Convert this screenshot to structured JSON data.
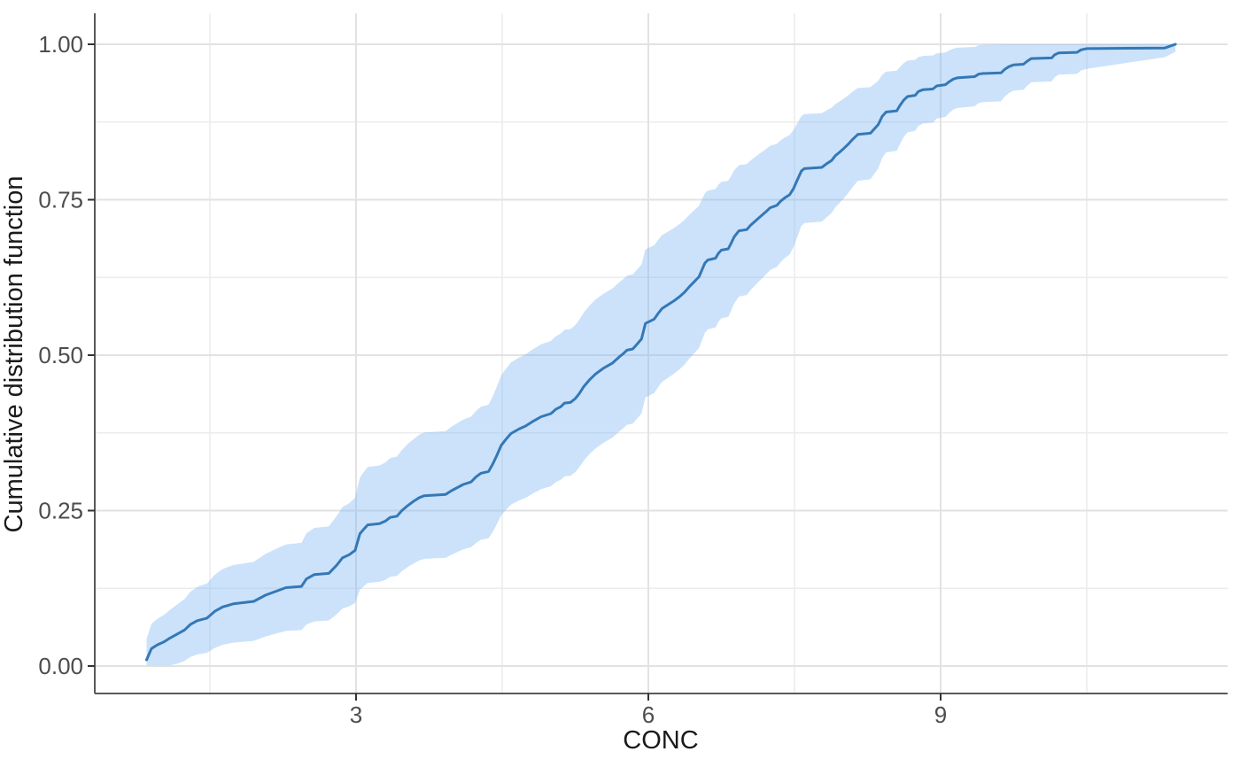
{
  "chart_data": {
    "type": "line",
    "subtype": "ecdf_with_confidence_band",
    "title": "",
    "xlabel": "CONC",
    "ylabel": "Cumulative distribution function",
    "legend": "none",
    "grid": "major+minor",
    "x_ticks": [
      3,
      6,
      9
    ],
    "x_tick_labels": [
      "3",
      "6",
      "9"
    ],
    "x_minor_ticks": [
      1.5,
      4.5,
      7.5,
      10.5
    ],
    "y_ticks": [
      0,
      0.25,
      0.5,
      0.75,
      1
    ],
    "y_tick_labels": [
      "0.00",
      "0.25",
      "0.50",
      "0.75",
      "1.00"
    ],
    "y_minor_ticks": [
      0.125,
      0.375,
      0.625,
      0.875
    ],
    "xlim": [
      0.32,
      11.95
    ],
    "ylim": [
      -0.043,
      1.051
    ],
    "x_data_range": [
      0.85,
      11.41
    ],
    "colors": {
      "line": "#3478b6",
      "band_fill": "rgba(130,185,242,0.42)",
      "grid_major": "#e2e2e2",
      "grid_minor": "#ececec",
      "axis_line": "#595959",
      "tick_mark": "#333333",
      "tick_label": "#4d4d4d",
      "axis_title": "#1a1a1a",
      "background": "#ffffff"
    },
    "band_model": {
      "note": "pointwise confidence band around ECDF, estimated from pixels",
      "hi_base": 0.03,
      "hi_curve": 0.36,
      "lo_base": 0.03,
      "lo_curve": 0.36,
      "lo_floor": 0.001,
      "hi_cap": 1.0,
      "tail_taper": {
        "start_x": 10.3,
        "start_gap": 0.04,
        "end_x": 11.41,
        "end_gap": 0.012
      }
    },
    "points": [
      [
        0.85,
        0.01
      ],
      [
        0.9,
        0.028
      ],
      [
        0.96,
        0.034
      ],
      [
        1.03,
        0.039
      ],
      [
        1.09,
        0.045
      ],
      [
        1.16,
        0.051
      ],
      [
        1.24,
        0.058
      ],
      [
        1.3,
        0.067
      ],
      [
        1.37,
        0.073
      ],
      [
        1.47,
        0.077
      ],
      [
        1.55,
        0.088
      ],
      [
        1.63,
        0.095
      ],
      [
        1.74,
        0.1
      ],
      [
        1.95,
        0.104
      ],
      [
        2.07,
        0.114
      ],
      [
        2.19,
        0.121
      ],
      [
        2.28,
        0.126
      ],
      [
        2.44,
        0.128
      ],
      [
        2.49,
        0.14
      ],
      [
        2.57,
        0.147
      ],
      [
        2.72,
        0.149
      ],
      [
        2.8,
        0.162
      ],
      [
        2.86,
        0.174
      ],
      [
        2.93,
        0.179
      ],
      [
        2.99,
        0.186
      ],
      [
        3.04,
        0.213
      ],
      [
        3.09,
        0.222
      ],
      [
        3.12,
        0.227
      ],
      [
        3.24,
        0.229
      ],
      [
        3.3,
        0.233
      ],
      [
        3.35,
        0.239
      ],
      [
        3.42,
        0.241
      ],
      [
        3.47,
        0.25
      ],
      [
        3.53,
        0.258
      ],
      [
        3.59,
        0.265
      ],
      [
        3.65,
        0.271
      ],
      [
        3.7,
        0.274
      ],
      [
        3.92,
        0.276
      ],
      [
        3.98,
        0.282
      ],
      [
        4.04,
        0.287
      ],
      [
        4.1,
        0.292
      ],
      [
        4.18,
        0.296
      ],
      [
        4.23,
        0.304
      ],
      [
        4.28,
        0.31
      ],
      [
        4.36,
        0.313
      ],
      [
        4.4,
        0.324
      ],
      [
        4.44,
        0.337
      ],
      [
        4.49,
        0.355
      ],
      [
        4.54,
        0.365
      ],
      [
        4.59,
        0.374
      ],
      [
        4.67,
        0.381
      ],
      [
        4.74,
        0.386
      ],
      [
        4.81,
        0.393
      ],
      [
        4.9,
        0.401
      ],
      [
        5.0,
        0.406
      ],
      [
        5.05,
        0.413
      ],
      [
        5.1,
        0.417
      ],
      [
        5.14,
        0.423
      ],
      [
        5.2,
        0.424
      ],
      [
        5.25,
        0.43
      ],
      [
        5.29,
        0.438
      ],
      [
        5.34,
        0.45
      ],
      [
        5.4,
        0.461
      ],
      [
        5.46,
        0.47
      ],
      [
        5.54,
        0.479
      ],
      [
        5.63,
        0.487
      ],
      [
        5.7,
        0.497
      ],
      [
        5.74,
        0.502
      ],
      [
        5.78,
        0.508
      ],
      [
        5.84,
        0.51
      ],
      [
        5.88,
        0.517
      ],
      [
        5.93,
        0.526
      ],
      [
        5.97,
        0.551
      ],
      [
        6.06,
        0.558
      ],
      [
        6.1,
        0.567
      ],
      [
        6.14,
        0.575
      ],
      [
        6.2,
        0.581
      ],
      [
        6.26,
        0.587
      ],
      [
        6.32,
        0.594
      ],
      [
        6.37,
        0.601
      ],
      [
        6.42,
        0.61
      ],
      [
        6.47,
        0.618
      ],
      [
        6.52,
        0.626
      ],
      [
        6.55,
        0.637
      ],
      [
        6.58,
        0.648
      ],
      [
        6.61,
        0.653
      ],
      [
        6.69,
        0.656
      ],
      [
        6.72,
        0.664
      ],
      [
        6.75,
        0.669
      ],
      [
        6.82,
        0.671
      ],
      [
        6.85,
        0.68
      ],
      [
        6.88,
        0.69
      ],
      [
        6.93,
        0.7
      ],
      [
        7.01,
        0.702
      ],
      [
        7.05,
        0.709
      ],
      [
        7.1,
        0.716
      ],
      [
        7.15,
        0.723
      ],
      [
        7.21,
        0.731
      ],
      [
        7.25,
        0.737
      ],
      [
        7.32,
        0.741
      ],
      [
        7.36,
        0.748
      ],
      [
        7.4,
        0.753
      ],
      [
        7.45,
        0.758
      ],
      [
        7.49,
        0.768
      ],
      [
        7.53,
        0.782
      ],
      [
        7.57,
        0.796
      ],
      [
        7.6,
        0.8
      ],
      [
        7.78,
        0.802
      ],
      [
        7.84,
        0.809
      ],
      [
        7.88,
        0.813
      ],
      [
        7.92,
        0.821
      ],
      [
        7.96,
        0.826
      ],
      [
        8.01,
        0.833
      ],
      [
        8.05,
        0.839
      ],
      [
        8.09,
        0.846
      ],
      [
        8.15,
        0.855
      ],
      [
        8.28,
        0.857
      ],
      [
        8.32,
        0.864
      ],
      [
        8.36,
        0.871
      ],
      [
        8.4,
        0.884
      ],
      [
        8.44,
        0.891
      ],
      [
        8.55,
        0.893
      ],
      [
        8.58,
        0.901
      ],
      [
        8.62,
        0.91
      ],
      [
        8.66,
        0.916
      ],
      [
        8.74,
        0.918
      ],
      [
        8.77,
        0.924
      ],
      [
        8.82,
        0.927
      ],
      [
        8.92,
        0.928
      ],
      [
        8.96,
        0.933
      ],
      [
        9.05,
        0.935
      ],
      [
        9.09,
        0.94
      ],
      [
        9.13,
        0.944
      ],
      [
        9.17,
        0.946
      ],
      [
        9.35,
        0.948
      ],
      [
        9.39,
        0.952
      ],
      [
        9.43,
        0.953
      ],
      [
        9.62,
        0.954
      ],
      [
        9.66,
        0.96
      ],
      [
        9.7,
        0.964
      ],
      [
        9.75,
        0.967
      ],
      [
        9.85,
        0.968
      ],
      [
        9.89,
        0.973
      ],
      [
        9.93,
        0.977
      ],
      [
        10.14,
        0.978
      ],
      [
        10.17,
        0.983
      ],
      [
        10.21,
        0.986
      ],
      [
        10.4,
        0.987
      ],
      [
        10.44,
        0.991
      ],
      [
        10.5,
        0.993
      ],
      [
        11.3,
        0.994
      ],
      [
        11.41,
        1.0
      ]
    ]
  }
}
